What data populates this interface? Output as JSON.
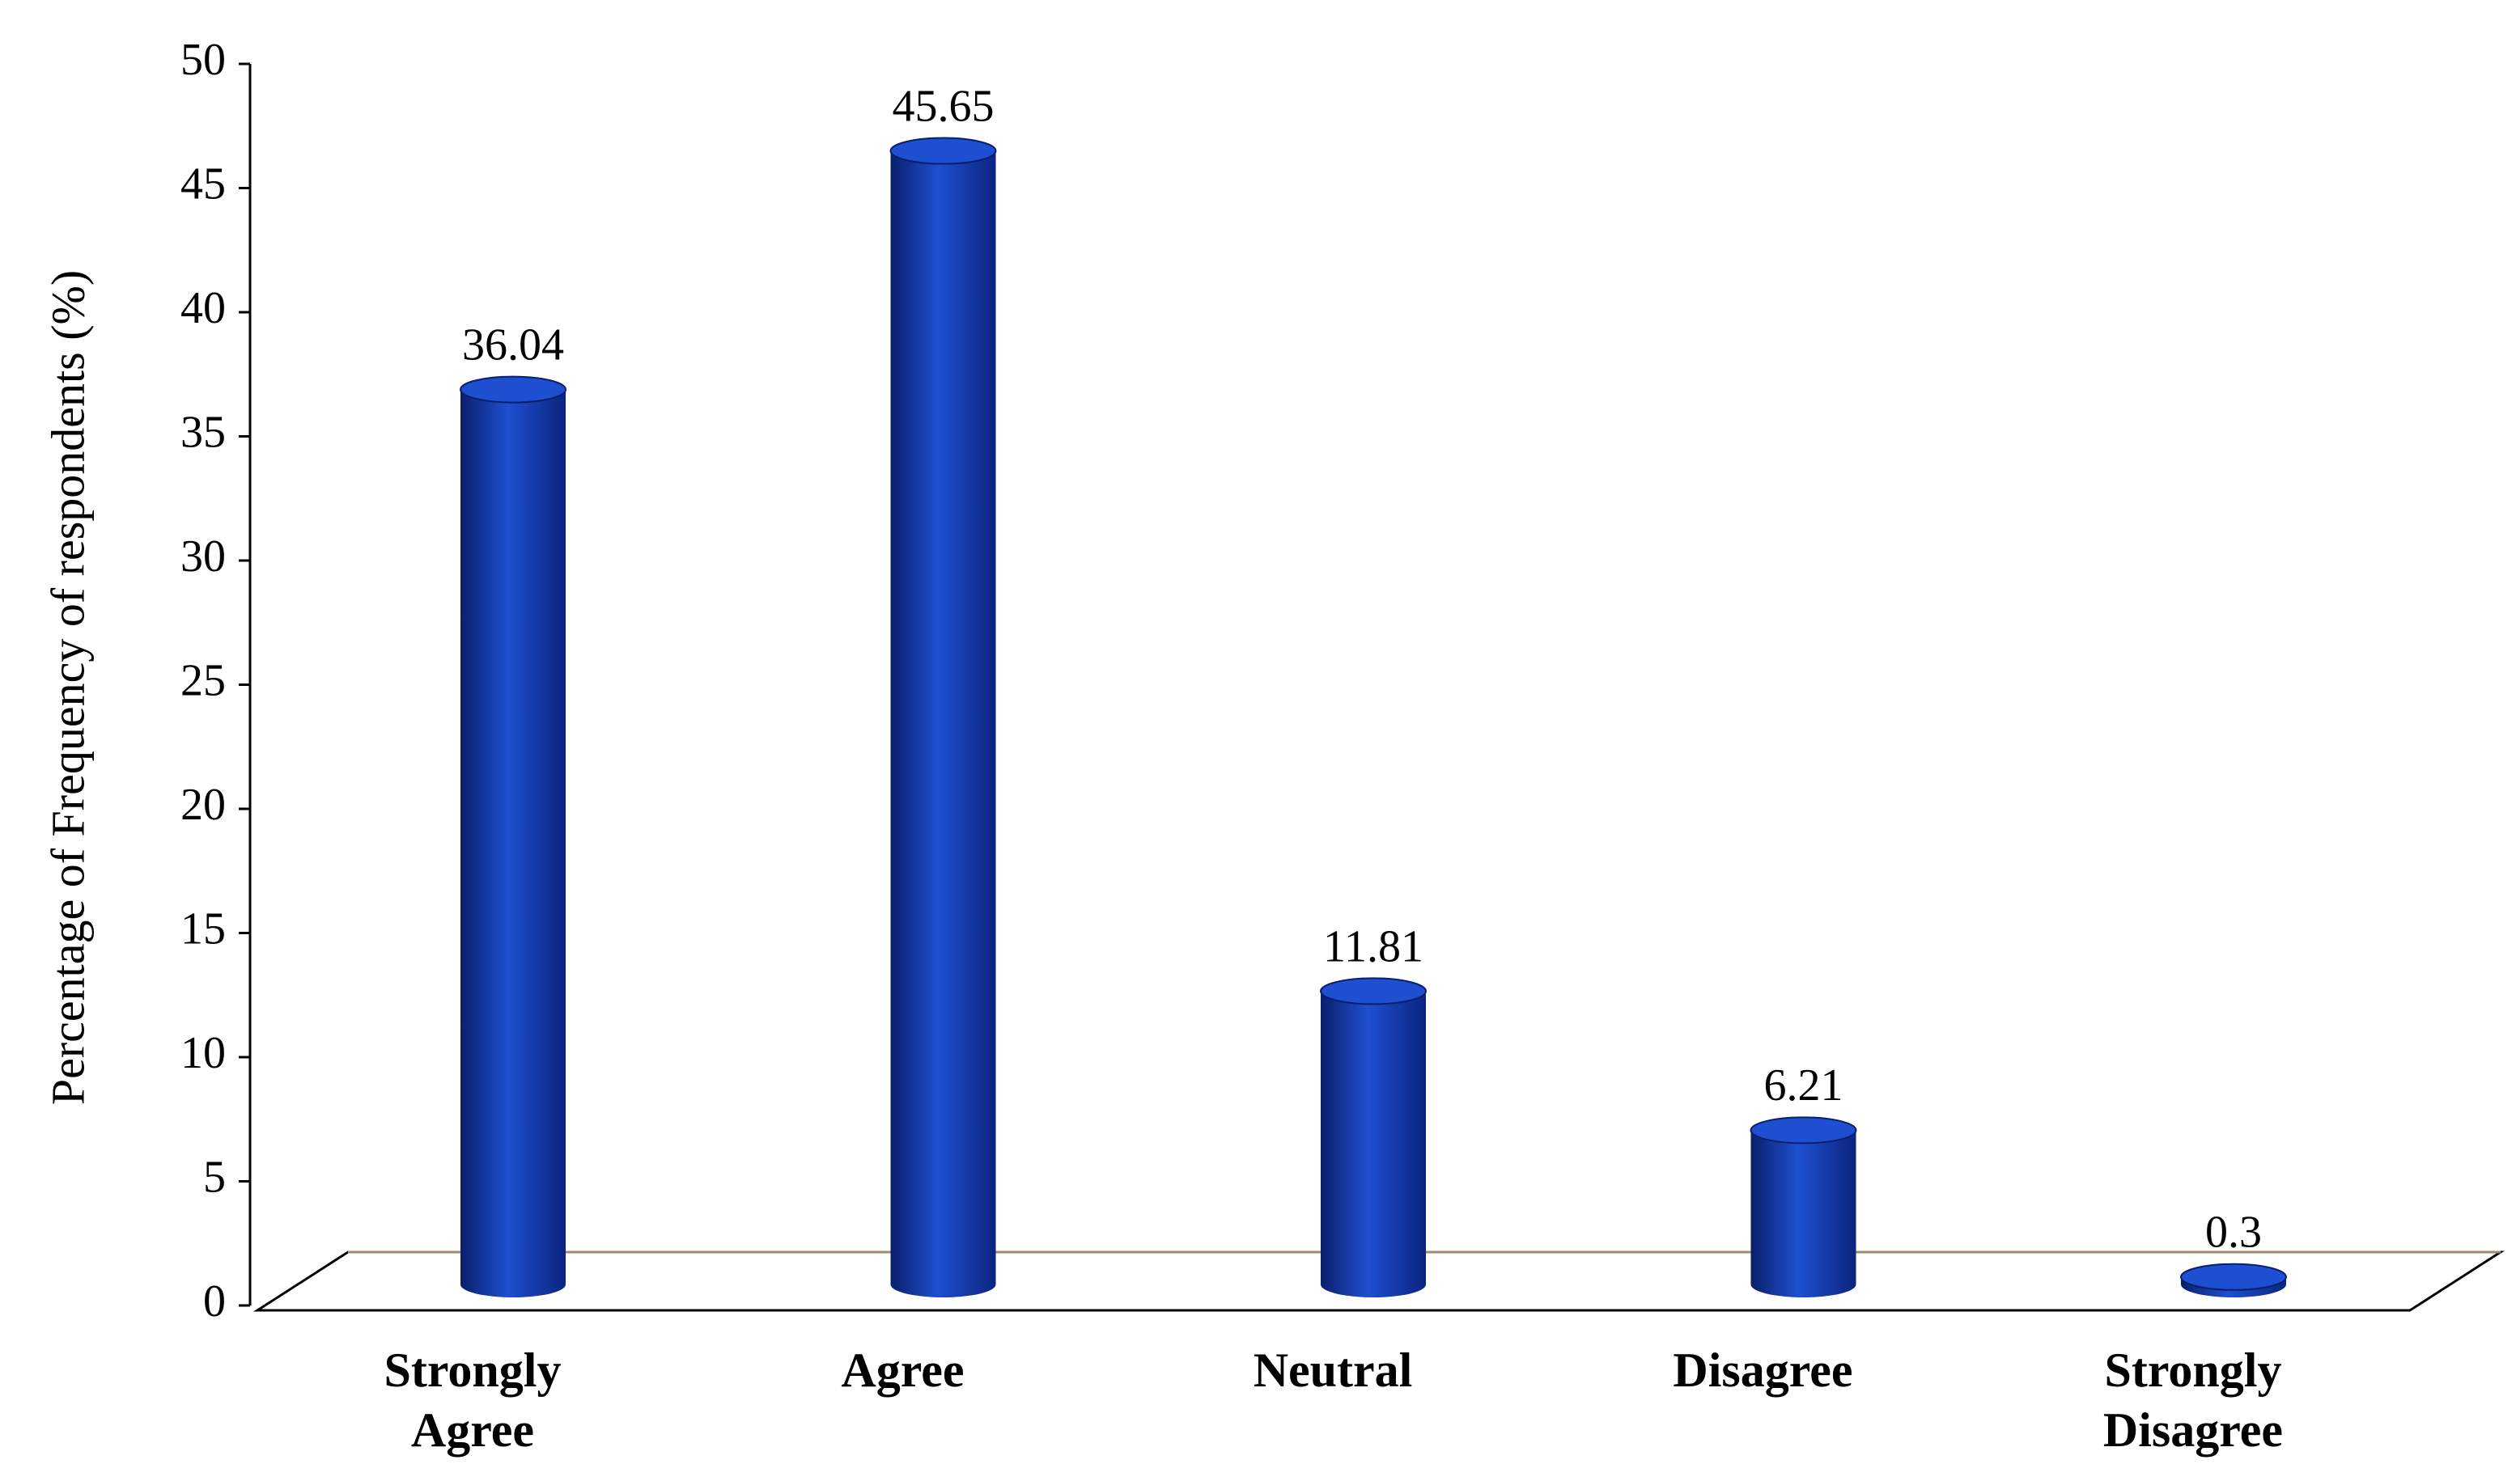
{
  "chart_data": {
    "type": "bar",
    "y_label": "Percentage of Frequency of respondents (%)",
    "categories": [
      "Strongly Agree",
      "Agree",
      "Neutral",
      "Disagree",
      "Strongly Disagree"
    ],
    "values": [
      36.04,
      45.65,
      11.81,
      6.21,
      0.3
    ],
    "color": "#1e4fd0",
    "ylim": [
      0,
      50
    ],
    "yticks": [
      0,
      5,
      10,
      15,
      20,
      25,
      30,
      35,
      40,
      45,
      50
    ]
  }
}
